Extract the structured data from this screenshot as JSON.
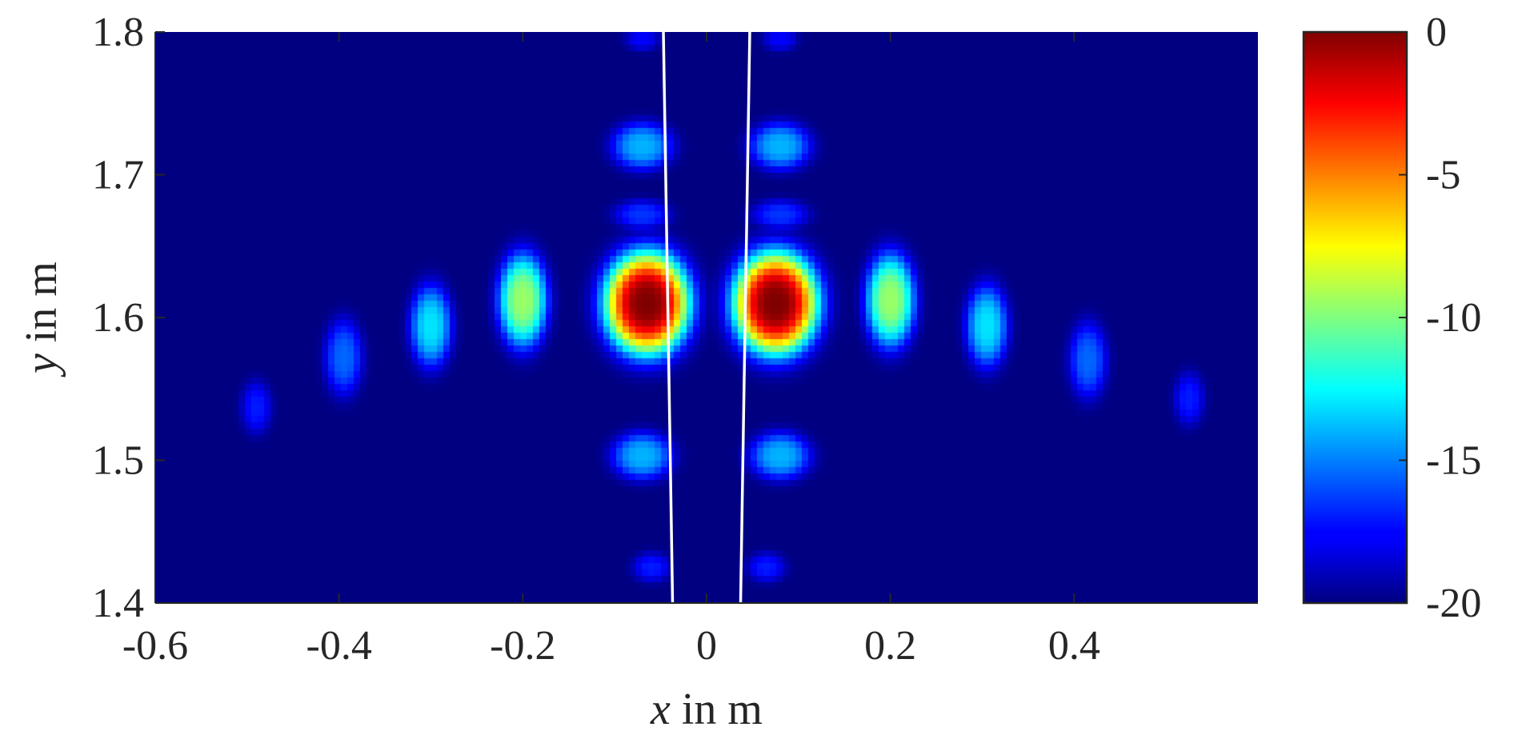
{
  "chart_data": {
    "type": "heatmap",
    "title": "",
    "xlabel": {
      "var": "x",
      "unit": " in m"
    },
    "ylabel": {
      "var": "y",
      "unit": " in m"
    },
    "xlim": [
      -0.6,
      0.6
    ],
    "ylim": [
      1.4,
      1.8
    ],
    "xticks": [
      -0.6,
      -0.4,
      -0.2,
      0,
      0.2,
      0.4
    ],
    "xtick_labels": [
      "-0.6",
      "-0.4",
      "-0.2",
      "0",
      "0.2",
      "0.4"
    ],
    "yticks": [
      1.4,
      1.5,
      1.6,
      1.7,
      1.8
    ],
    "ytick_labels": [
      "1.4",
      "1.5",
      "1.6",
      "1.7",
      "1.8"
    ],
    "colorbar": {
      "range": [
        -20,
        0
      ],
      "ticks": [
        0,
        -5,
        -10,
        -15,
        -20
      ],
      "tick_labels": [
        "0",
        "-5",
        "-10",
        "-15",
        "-20"
      ],
      "colormap": "jet"
    },
    "background_value": -20,
    "blobs": [
      {
        "x": -0.065,
        "y": 1.61,
        "sx": 0.045,
        "sy": 0.035,
        "peak": 0.0
      },
      {
        "x": 0.075,
        "y": 1.61,
        "sx": 0.045,
        "sy": 0.035,
        "peak": 0.0
      },
      {
        "x": -0.2,
        "y": 1.612,
        "sx": 0.026,
        "sy": 0.032,
        "peak": -9.5
      },
      {
        "x": 0.2,
        "y": 1.612,
        "sx": 0.026,
        "sy": 0.032,
        "peak": -9.5
      },
      {
        "x": -0.3,
        "y": 1.594,
        "sx": 0.022,
        "sy": 0.028,
        "peak": -13.0
      },
      {
        "x": 0.305,
        "y": 1.594,
        "sx": 0.022,
        "sy": 0.028,
        "peak": -13.0
      },
      {
        "x": -0.395,
        "y": 1.572,
        "sx": 0.02,
        "sy": 0.026,
        "peak": -15.5
      },
      {
        "x": 0.415,
        "y": 1.57,
        "sx": 0.02,
        "sy": 0.026,
        "peak": -15.5
      },
      {
        "x": -0.49,
        "y": 1.537,
        "sx": 0.016,
        "sy": 0.018,
        "peak": -17.0
      },
      {
        "x": 0.525,
        "y": 1.543,
        "sx": 0.016,
        "sy": 0.018,
        "peak": -17.0
      },
      {
        "x": -0.07,
        "y": 1.72,
        "sx": 0.032,
        "sy": 0.016,
        "peak": -14.0
      },
      {
        "x": 0.08,
        "y": 1.72,
        "sx": 0.032,
        "sy": 0.016,
        "peak": -14.0
      },
      {
        "x": -0.07,
        "y": 1.503,
        "sx": 0.032,
        "sy": 0.016,
        "peak": -14.0
      },
      {
        "x": 0.08,
        "y": 1.503,
        "sx": 0.032,
        "sy": 0.016,
        "peak": -14.0
      },
      {
        "x": -0.07,
        "y": 1.672,
        "sx": 0.03,
        "sy": 0.01,
        "peak": -16.5
      },
      {
        "x": 0.08,
        "y": 1.672,
        "sx": 0.03,
        "sy": 0.01,
        "peak": -16.5
      },
      {
        "x": -0.06,
        "y": 1.425,
        "sx": 0.02,
        "sy": 0.01,
        "peak": -17.0
      },
      {
        "x": 0.065,
        "y": 1.425,
        "sx": 0.02,
        "sy": 0.01,
        "peak": -17.0
      },
      {
        "x": -0.07,
        "y": 1.795,
        "sx": 0.018,
        "sy": 0.008,
        "peak": -17.5
      },
      {
        "x": 0.08,
        "y": 1.795,
        "sx": 0.018,
        "sy": 0.008,
        "peak": -17.5
      }
    ],
    "overlay_lines": [
      {
        "from": [
          -0.047,
          1.8
        ],
        "to": [
          -0.037,
          1.4
        ],
        "color": "#ffffff"
      },
      {
        "from": [
          0.047,
          1.8
        ],
        "to": [
          0.037,
          1.4
        ],
        "color": "#ffffff"
      }
    ]
  }
}
